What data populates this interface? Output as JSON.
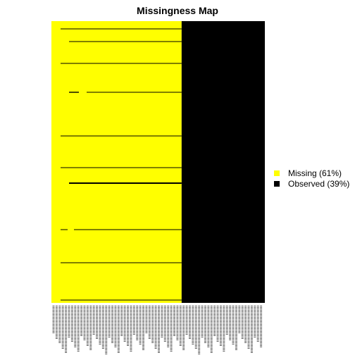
{
  "chart_data": {
    "type": "heatmap",
    "title": "Missingness Map",
    "colors": {
      "missing": "#ffff00",
      "observed": "#000000"
    },
    "legend": {
      "position": "right",
      "entries": [
        {
          "label": "Missing (61%)",
          "color": "#ffff00"
        },
        {
          "label": "Observed (39%)",
          "color": "#000000"
        }
      ]
    },
    "missing_fraction": 0.61,
    "observed_fraction": 0.39
  }
}
